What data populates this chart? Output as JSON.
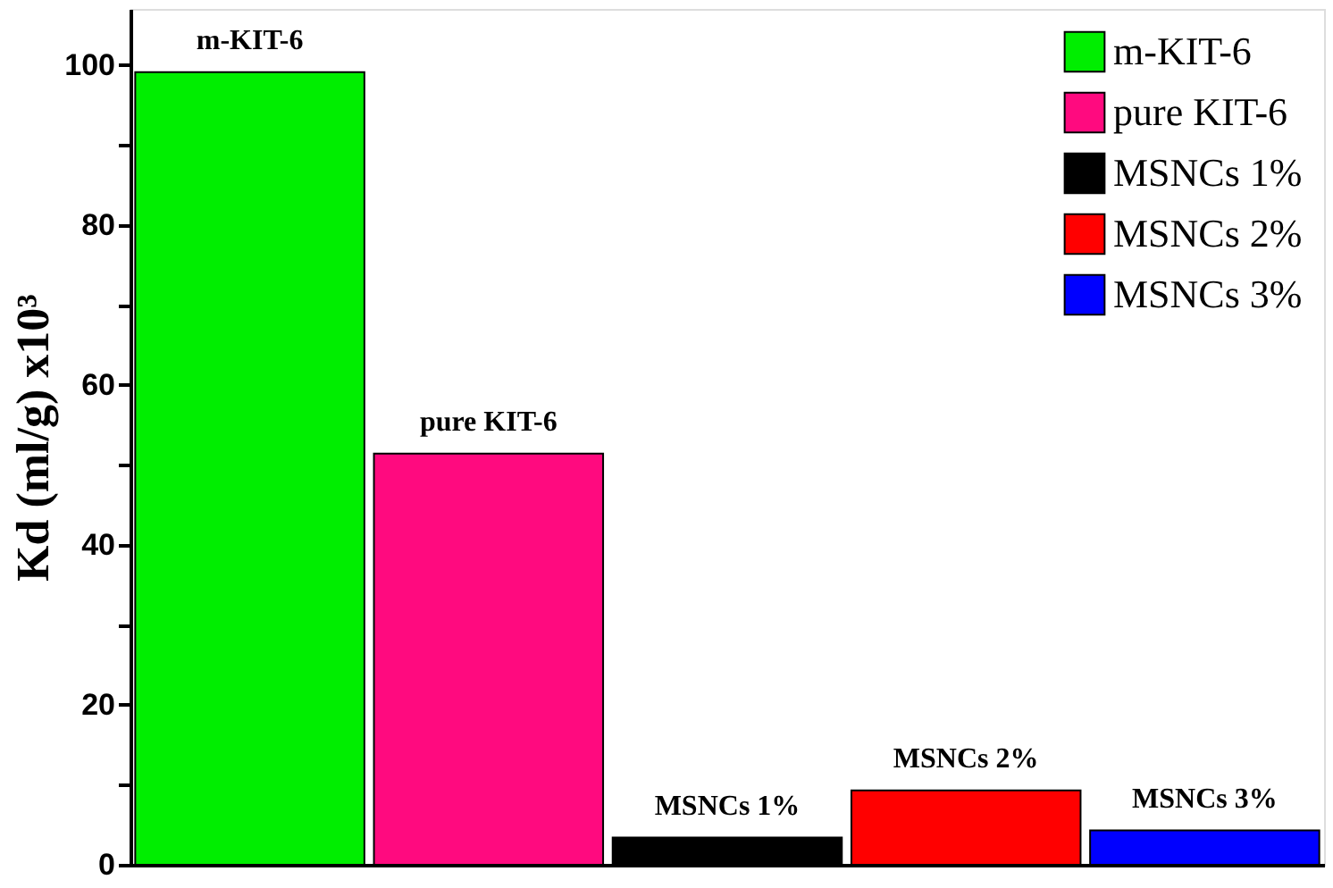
{
  "chart_data": {
    "type": "bar",
    "categories": [
      "m-KIT-6",
      "pure KIT-6",
      "MSNCs 1%",
      "MSNCs 2%",
      "MSNCs 3%"
    ],
    "series": [
      {
        "name": "m-KIT-6",
        "color": "#00ee00",
        "values": [
          99.1,
          null,
          null,
          null,
          null
        ]
      },
      {
        "name": "pure KIT-6",
        "color": "#ff0a7f",
        "values": [
          null,
          51.4,
          null,
          null,
          null
        ]
      },
      {
        "name": "MSNCs 1%",
        "color": "#000000",
        "values": [
          null,
          null,
          3.4,
          null,
          null
        ]
      },
      {
        "name": "MSNCs 2%",
        "color": "#ff0000",
        "values": [
          null,
          null,
          null,
          9.3,
          null
        ]
      },
      {
        "name": "MSNCs 3%",
        "color": "#0000ff",
        "values": [
          null,
          null,
          null,
          null,
          4.3
        ]
      }
    ],
    "ylabel": "Kd (ml/g) x10³",
    "ylim": [
      0,
      107
    ],
    "yticks": [
      0,
      {
        "value": 10,
        "label": null
      },
      20,
      {
        "value": 30,
        "label": null
      },
      40,
      {
        "value": 50,
        "label": null
      },
      60,
      {
        "value": 70,
        "label": null
      },
      80,
      {
        "value": 90,
        "label": null
      },
      100
    ],
    "tick_labels": "y",
    "legend": "top right",
    "grid": false
  }
}
